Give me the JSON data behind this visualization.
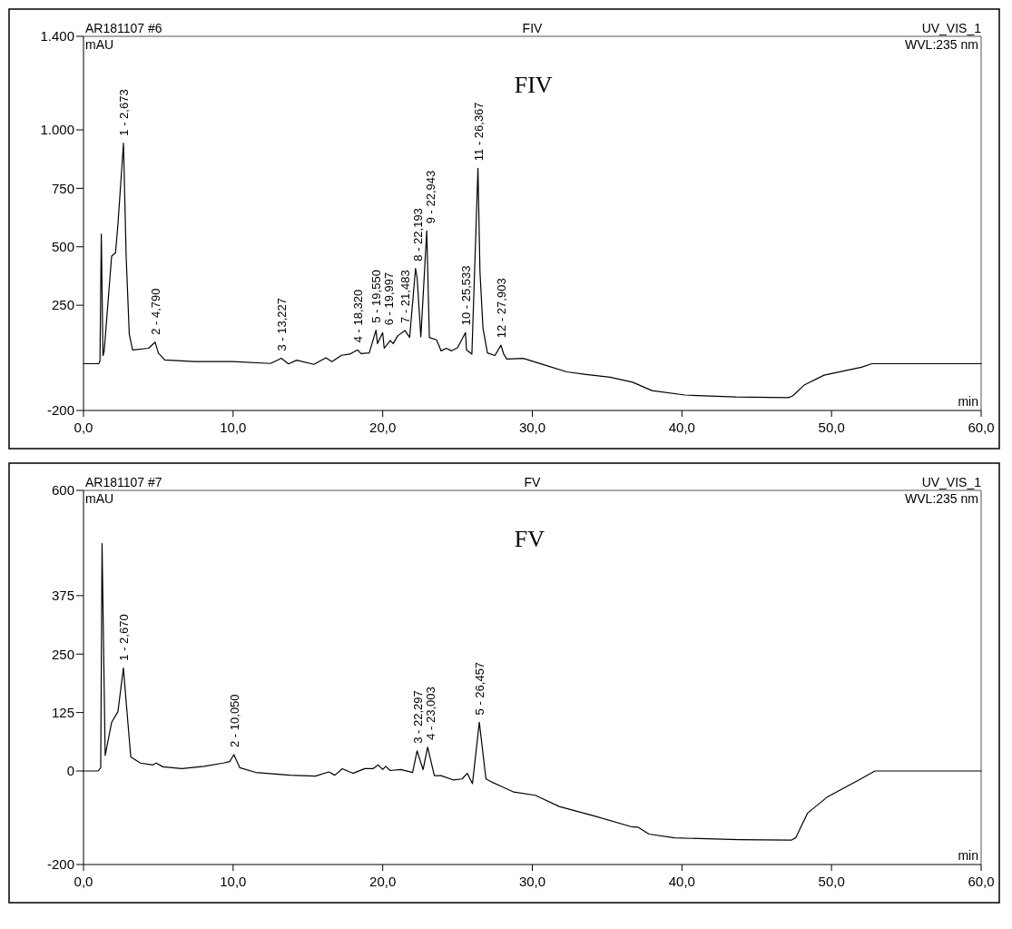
{
  "chart_data": [
    {
      "type": "line",
      "title": "FIV",
      "ylabel": "mAU",
      "xlabel": "min",
      "xlim": [
        0,
        60
      ],
      "ylim": [
        -200,
        1400
      ],
      "xticks": [
        {
          "value": 0,
          "label": "0,0"
        },
        {
          "value": 10,
          "label": "10,0"
        },
        {
          "value": 20,
          "label": "20,0"
        },
        {
          "value": 30,
          "label": "30,0"
        },
        {
          "value": 40,
          "label": "40,0"
        },
        {
          "value": 50,
          "label": "50,0"
        },
        {
          "value": 60,
          "label": "60,0"
        }
      ],
      "yticks": [
        -200,
        250,
        500,
        750,
        {
          "value": 1000,
          "label": "1.000"
        },
        {
          "value": 1400,
          "label": "1.400"
        }
      ],
      "series": [
        {
          "color": "#000000",
          "x": [
            0,
            1.02,
            1.1,
            1.19,
            1.3,
            1.38,
            1.88,
            2.14,
            2.3,
            2.673,
            2.85,
            3.06,
            3.28,
            4.35,
            4.79,
            5.0,
            5.43,
            7.4,
            9.95,
            12.5,
            13.227,
            13.7,
            14.25,
            15.4,
            16.2,
            16.6,
            17.25,
            17.8,
            18.32,
            18.55,
            19.1,
            19.55,
            19.65,
            19.997,
            20.1,
            20.5,
            20.7,
            21.0,
            21.483,
            21.8,
            22.193,
            22.3,
            22.55,
            22.943,
            23.12,
            23.6,
            23.9,
            24.25,
            24.6,
            25.0,
            25.533,
            25.6,
            25.96,
            26.367,
            26.5,
            26.7,
            27.0,
            27.5,
            27.903,
            28.1,
            28.3,
            29.4,
            30.96,
            32.3,
            33.6,
            35.2,
            36.7,
            38.0,
            40.2,
            43.6,
            47.1,
            47.4,
            48.2,
            49.5,
            52.0,
            52.7,
            60
          ],
          "values": [
            0,
            0,
            12,
            554,
            35,
            52,
            460,
            474,
            595,
            943,
            460,
            126,
            59,
            66,
            92,
            46,
            16,
            9,
            9,
            1,
            23,
            -1,
            15,
            -3,
            25,
            9,
            36,
            41,
            59,
            43,
            46,
            143,
            86,
            133,
            66,
            99,
            86,
            119,
            142,
            112,
            407,
            367,
            115,
            568,
            112,
            102,
            55,
            66,
            55,
            68,
            133,
            59,
            41,
            836,
            394,
            153,
            46,
            35,
            79,
            39,
            20,
            23,
            -8,
            -35,
            -46,
            -58,
            -79,
            -115,
            -134,
            -142,
            -145,
            -138,
            -90,
            -49,
            -15,
            0,
            0
          ]
        }
      ],
      "annotations": [
        "AR181107 #6",
        "UV_VIS_1",
        "WVL:235 nm",
        "FIV",
        {
          "text": "1 - 2,673",
          "x": 2.673,
          "y": 943
        },
        {
          "text": "2 - 4,790",
          "x": 4.79,
          "y": 92
        },
        {
          "text": "3 - 13,227",
          "x": 13.227,
          "y": 23
        },
        {
          "text": "4 - 18,320",
          "x": 18.32,
          "y": 59
        },
        {
          "text": "5 - 19,550",
          "x": 19.55,
          "y": 143
        },
        {
          "text": "6 - 19,997",
          "x": 19.997,
          "y": 133
        },
        {
          "text": "7 - 21,483",
          "x": 21.483,
          "y": 142
        },
        {
          "text": "8 - 22,193",
          "x": 22.193,
          "y": 407
        },
        {
          "text": "9 - 22,943",
          "x": 22.943,
          "y": 568
        },
        {
          "text": "10 - 25,533",
          "x": 25.533,
          "y": 133
        },
        {
          "text": "11 - 26,367",
          "x": 26.367,
          "y": 836
        },
        {
          "text": "12 - 27,903",
          "x": 27.903,
          "y": 79
        }
      ]
    },
    {
      "type": "line",
      "title": "FV",
      "ylabel": "mAU",
      "xlabel": "min",
      "xlim": [
        0,
        60
      ],
      "ylim": [
        -200,
        600
      ],
      "xticks": [
        {
          "value": 0,
          "label": "0,0"
        },
        {
          "value": 10,
          "label": "10,0"
        },
        {
          "value": 20,
          "label": "20,0"
        },
        {
          "value": 30,
          "label": "30,0"
        },
        {
          "value": 40,
          "label": "40,0"
        },
        {
          "value": 50,
          "label": "50,0"
        },
        {
          "value": 60,
          "label": "60,0"
        }
      ],
      "yticks": [
        -200,
        0,
        125,
        250,
        375,
        600
      ],
      "series": [
        {
          "color": "#000000",
          "x": [
            0,
            0.98,
            1.15,
            1.24,
            1.45,
            1.88,
            2.3,
            2.67,
            2.88,
            3.16,
            3.8,
            4.65,
            4.86,
            5.3,
            6.57,
            8.06,
            9.34,
            9.77,
            10.05,
            10.45,
            11.5,
            13.8,
            15.5,
            16.4,
            16.8,
            17.3,
            18.0,
            18.8,
            19.35,
            19.7,
            20.0,
            20.2,
            20.5,
            21.2,
            22.0,
            22.297,
            22.7,
            23.003,
            23.45,
            23.9,
            24.7,
            25.3,
            25.65,
            26.0,
            26.457,
            26.9,
            27.25,
            28.0,
            28.76,
            30.2,
            31.8,
            34.0,
            36.6,
            37.05,
            37.8,
            39.5,
            43.8,
            47.3,
            47.6,
            48.4,
            49.7,
            51.9,
            52.9,
            60
          ],
          "values": [
            0,
            0,
            7,
            486,
            33,
            104,
            127,
            220,
            137,
            30,
            17,
            13,
            17,
            9,
            5,
            10,
            17,
            20,
            35,
            7,
            -3,
            -9,
            -11,
            -2,
            -9,
            5,
            -5,
            5,
            5,
            13,
            3,
            10,
            1,
            3,
            -3,
            43,
            3,
            51,
            -10,
            -10,
            -19,
            -17,
            -5,
            -27,
            104,
            -17,
            -23,
            -34,
            -45,
            -52,
            -76,
            -95,
            -119,
            -120,
            -135,
            -143,
            -147,
            -148,
            -143,
            -90,
            -56,
            -18,
            0,
            0
          ]
        }
      ],
      "annotations": [
        "AR181107 #7",
        "UV_VIS_1",
        "WVL:235 nm",
        "FV",
        {
          "text": "1 - 2,670",
          "x": 2.67,
          "y": 220
        },
        {
          "text": "2 - 10,050",
          "x": 10.05,
          "y": 35
        },
        {
          "text": "3 - 22,297",
          "x": 22.297,
          "y": 43
        },
        {
          "text": "4 - 23,003",
          "x": 23.003,
          "y": 51
        },
        {
          "text": "5 - 26,457",
          "x": 26.457,
          "y": 104
        }
      ]
    }
  ]
}
